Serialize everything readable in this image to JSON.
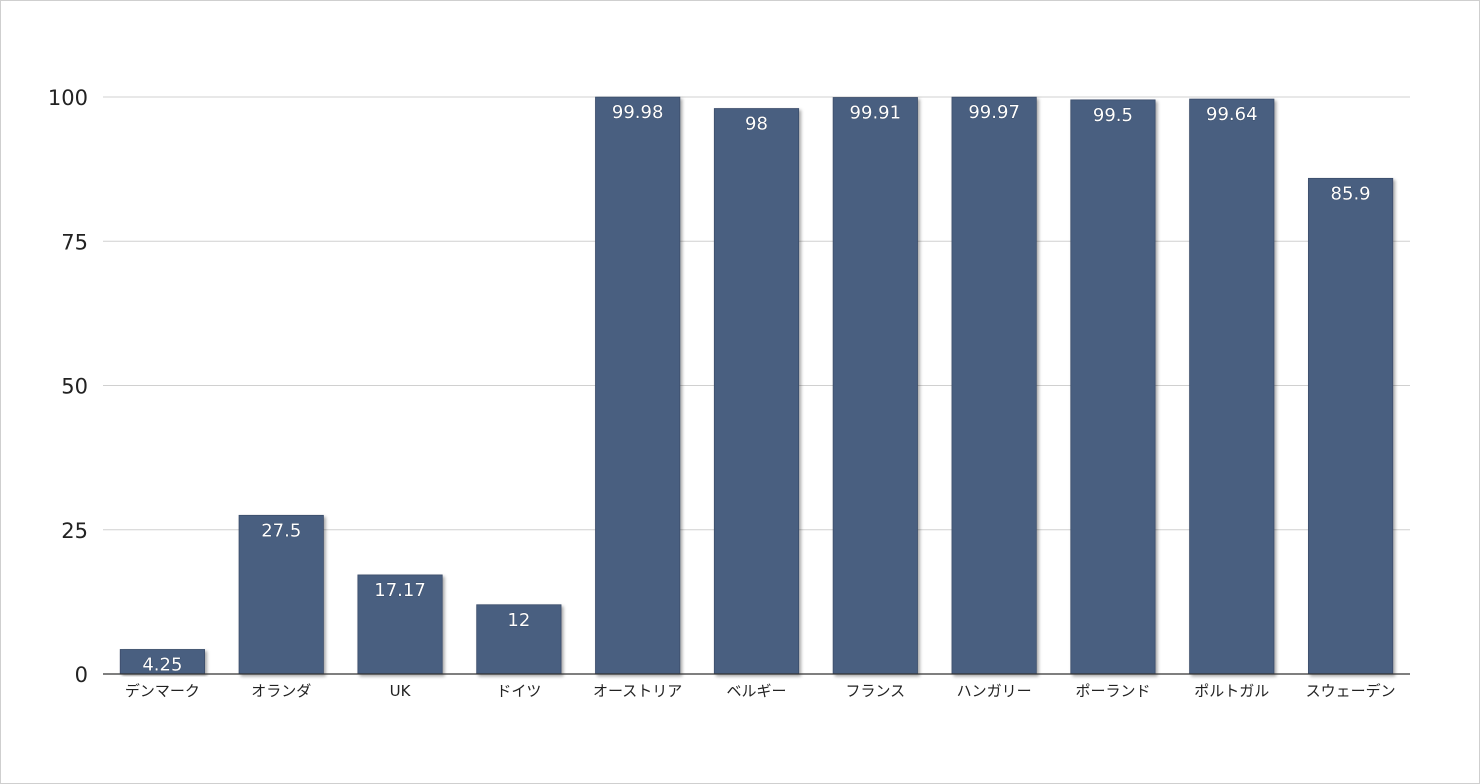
{
  "chart_data": {
    "type": "bar",
    "title": "",
    "xlabel": "",
    "ylabel": "",
    "categories": [
      "デンマーク",
      "オランダ",
      "UK",
      "ドイツ",
      "オーストリア",
      "ベルギー",
      "フランス",
      "ハンガリー",
      "ポーランド",
      "ポルトガル",
      "スウェーデン"
    ],
    "values": [
      4.25,
      27.5,
      17.17,
      12,
      99.98,
      98,
      99.91,
      99.97,
      99.5,
      99.64,
      85.9
    ],
    "data_labels": [
      "4.25",
      "27.5",
      "17.17",
      "12",
      "99.98",
      "98",
      "99.91",
      "99.97",
      "99.5",
      "99.64",
      "85.9"
    ],
    "ylim": [
      0,
      100
    ],
    "yticks": [
      "0",
      "25",
      "50",
      "75",
      "100"
    ],
    "grid": true,
    "legend": "none",
    "colors": {
      "bar": "#4a5f80",
      "bar_edge": "#3b4d6a",
      "grid": "#d0d0d0",
      "axis": "#333333"
    }
  }
}
